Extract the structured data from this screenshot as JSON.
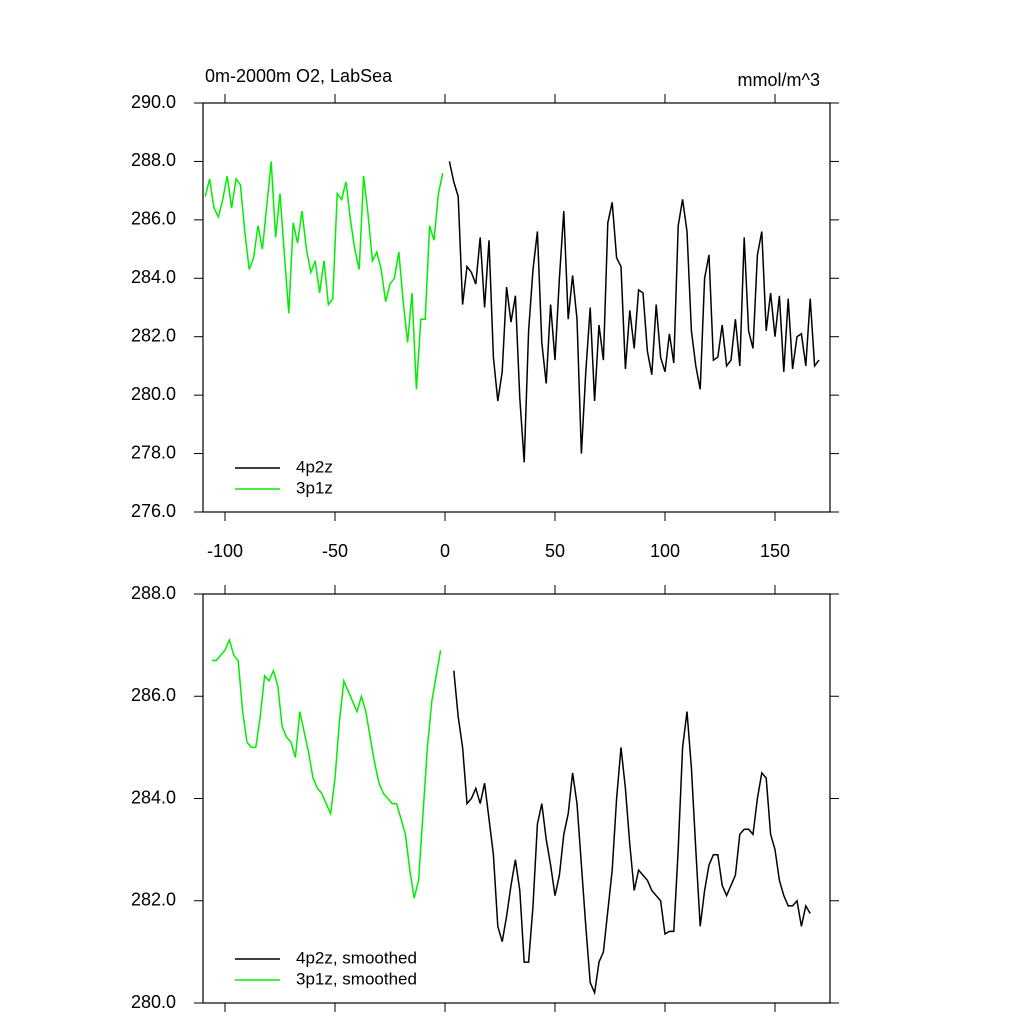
{
  "chart_data": [
    {
      "type": "line",
      "title": "0m-2000m O2, LabSea",
      "units": "mmol/m^3",
      "xlim": [
        -110,
        175
      ],
      "ylim": [
        276,
        290
      ],
      "xticks": [
        -100,
        -50,
        0,
        50,
        100,
        150
      ],
      "xtick_labels": true,
      "yticks": [
        {
          "value": 276,
          "label": "276.0"
        },
        {
          "value": 278,
          "label": "278.0"
        },
        {
          "value": 280,
          "label": "280.0"
        },
        {
          "value": 282,
          "label": "282.0"
        },
        {
          "value": 284,
          "label": "284.0"
        },
        {
          "value": 286,
          "label": "286.0"
        },
        {
          "value": 288,
          "label": "288.0"
        },
        {
          "value": 290,
          "label": "290.0"
        }
      ],
      "legend": "lower left",
      "series": [
        {
          "name": "4p2z",
          "color": "#000000",
          "x": [
            2,
            4,
            6,
            8,
            10,
            12,
            14,
            16,
            18,
            20,
            22,
            24,
            26,
            28,
            30,
            32,
            34,
            36,
            38,
            40,
            42,
            44,
            46,
            48,
            50,
            52,
            54,
            56,
            58,
            60,
            62,
            64,
            66,
            68,
            70,
            72,
            74,
            76,
            78,
            80,
            82,
            84,
            86,
            88,
            90,
            92,
            94,
            96,
            98,
            100,
            102,
            104,
            106,
            108,
            110,
            112,
            114,
            116,
            118,
            120,
            122,
            124,
            126,
            128,
            130,
            132,
            134,
            136,
            138,
            140,
            142,
            144,
            146,
            148,
            150,
            152,
            154,
            156,
            158,
            160,
            162,
            164,
            166,
            168,
            170
          ],
          "values": [
            288.0,
            287.3,
            286.8,
            283.1,
            284.4,
            284.2,
            283.8,
            285.4,
            283.0,
            285.3,
            281.3,
            279.8,
            280.8,
            283.7,
            282.5,
            283.4,
            279.9,
            277.7,
            282.2,
            284.3,
            285.6,
            281.8,
            280.4,
            283.1,
            281.2,
            284.0,
            286.3,
            282.6,
            284.1,
            282.6,
            278.0,
            280.8,
            283.0,
            279.8,
            282.4,
            281.2,
            285.9,
            286.6,
            284.7,
            284.4,
            280.9,
            282.9,
            281.6,
            283.6,
            283.5,
            281.5,
            280.7,
            283.1,
            281.3,
            280.8,
            282.1,
            281.1,
            285.8,
            286.7,
            285.6,
            282.2,
            281.0,
            280.2,
            284.0,
            284.8,
            281.2,
            281.3,
            282.4,
            281.0,
            281.2,
            282.6,
            281.0,
            285.4,
            282.2,
            281.6,
            284.8,
            285.6,
            282.2,
            283.5,
            282.0,
            283.4,
            280.8,
            283.3,
            280.9,
            282.0,
            282.1,
            281.0,
            283.3,
            281.0,
            281.2
          ]
        },
        {
          "name": "3p1z",
          "color": "#00ee00",
          "x": [
            -109,
            -107,
            -105,
            -103,
            -101,
            -99,
            -97,
            -95,
            -93,
            -91,
            -89,
            -87,
            -85,
            -83,
            -81,
            -79,
            -77,
            -75,
            -73,
            -71,
            -69,
            -67,
            -65,
            -63,
            -61,
            -59,
            -57,
            -55,
            -53,
            -51,
            -49,
            -47,
            -45,
            -43,
            -41,
            -39,
            -37,
            -35,
            -33,
            -31,
            -29,
            -27,
            -25,
            -23,
            -21,
            -19,
            -17,
            -15,
            -13,
            -11,
            -9,
            -7,
            -5,
            -3,
            -1
          ],
          "values": [
            286.8,
            287.4,
            286.4,
            286.1,
            286.7,
            287.5,
            286.4,
            287.4,
            287.2,
            285.6,
            284.3,
            284.7,
            285.8,
            285.0,
            286.5,
            288.0,
            285.4,
            286.9,
            284.8,
            282.8,
            285.9,
            285.2,
            286.3,
            285.0,
            284.2,
            284.6,
            283.5,
            284.6,
            283.1,
            283.3,
            286.9,
            286.7,
            287.3,
            286.0,
            285.0,
            284.3,
            287.5,
            286.2,
            284.6,
            284.9,
            284.3,
            283.2,
            283.8,
            284.0,
            284.9,
            283.2,
            281.8,
            283.5,
            280.2,
            282.6,
            282.6,
            285.8,
            285.3,
            286.9,
            287.6
          ]
        }
      ]
    },
    {
      "type": "line",
      "xlim": [
        -110,
        175
      ],
      "ylim": [
        280,
        288
      ],
      "xticks": [
        -100,
        -50,
        0,
        50,
        100,
        150
      ],
      "xtick_labels": false,
      "yticks": [
        {
          "value": 280,
          "label": "280.0"
        },
        {
          "value": 282,
          "label": "282.0"
        },
        {
          "value": 284,
          "label": "284.0"
        },
        {
          "value": 286,
          "label": "286.0"
        },
        {
          "value": 288,
          "label": "288.0"
        }
      ],
      "legend": "lower left",
      "series": [
        {
          "name": "4p2z, smoothed",
          "color": "#000000",
          "x": [
            4,
            6,
            8,
            10,
            12,
            14,
            16,
            18,
            20,
            22,
            24,
            26,
            28,
            30,
            32,
            34,
            36,
            38,
            40,
            42,
            44,
            46,
            48,
            50,
            52,
            54,
            56,
            58,
            60,
            62,
            64,
            66,
            68,
            70,
            72,
            74,
            76,
            78,
            80,
            82,
            84,
            86,
            88,
            90,
            92,
            94,
            96,
            98,
            100,
            102,
            104,
            106,
            108,
            110,
            112,
            114,
            116,
            118,
            120,
            122,
            124,
            126,
            128,
            130,
            132,
            134,
            136,
            138,
            140,
            142,
            144,
            146,
            148,
            150,
            152,
            154,
            156,
            158,
            160,
            162,
            164,
            166
          ],
          "values": [
            286.5,
            285.6,
            285.0,
            283.9,
            284.0,
            284.2,
            283.9,
            284.3,
            283.6,
            282.9,
            281.5,
            281.2,
            281.7,
            282.3,
            282.8,
            282.2,
            280.8,
            280.8,
            281.9,
            283.5,
            283.9,
            283.2,
            282.7,
            282.1,
            282.5,
            283.3,
            283.7,
            284.5,
            283.9,
            282.7,
            281.5,
            280.4,
            280.2,
            280.8,
            281.0,
            281.8,
            282.6,
            284.0,
            285.0,
            284.2,
            283.1,
            282.2,
            282.6,
            282.5,
            282.4,
            282.2,
            282.1,
            282.0,
            281.35,
            281.4,
            281.4,
            283.0,
            285.0,
            285.7,
            284.6,
            283.0,
            281.5,
            282.2,
            282.7,
            282.9,
            282.9,
            282.3,
            282.1,
            282.3,
            282.5,
            283.3,
            283.4,
            283.4,
            283.3,
            284.0,
            284.5,
            284.4,
            283.3,
            283.0,
            282.4,
            282.1,
            281.9,
            281.9,
            282.0,
            281.5,
            281.9,
            281.75
          ]
        },
        {
          "name": "3p1z, smoothed",
          "color": "#00ee00",
          "x": [
            -106,
            -104,
            -102,
            -100,
            -98,
            -96,
            -94,
            -92,
            -90,
            -88,
            -86,
            -84,
            -82,
            -80,
            -78,
            -76,
            -74,
            -72,
            -70,
            -68,
            -66,
            -64,
            -62,
            -60,
            -58,
            -56,
            -54,
            -52,
            -50,
            -48,
            -46,
            -44,
            -42,
            -40,
            -38,
            -36,
            -34,
            -32,
            -30,
            -28,
            -26,
            -24,
            -22,
            -20,
            -18,
            -16,
            -14,
            -12,
            -10,
            -8,
            -6,
            -4,
            -2
          ],
          "values": [
            286.7,
            286.7,
            286.8,
            286.9,
            287.1,
            286.8,
            286.7,
            285.7,
            285.1,
            285.0,
            285.0,
            285.6,
            286.4,
            286.3,
            286.5,
            286.2,
            285.4,
            285.2,
            285.1,
            284.8,
            285.7,
            285.3,
            284.9,
            284.4,
            284.2,
            284.1,
            283.9,
            283.7,
            284.4,
            285.5,
            286.3,
            286.1,
            285.9,
            285.7,
            286.0,
            285.7,
            285.2,
            284.7,
            284.3,
            284.1,
            284.0,
            283.9,
            283.9,
            283.6,
            283.3,
            282.6,
            282.05,
            282.4,
            283.7,
            285.0,
            285.9,
            286.4,
            286.9
          ]
        }
      ]
    }
  ]
}
